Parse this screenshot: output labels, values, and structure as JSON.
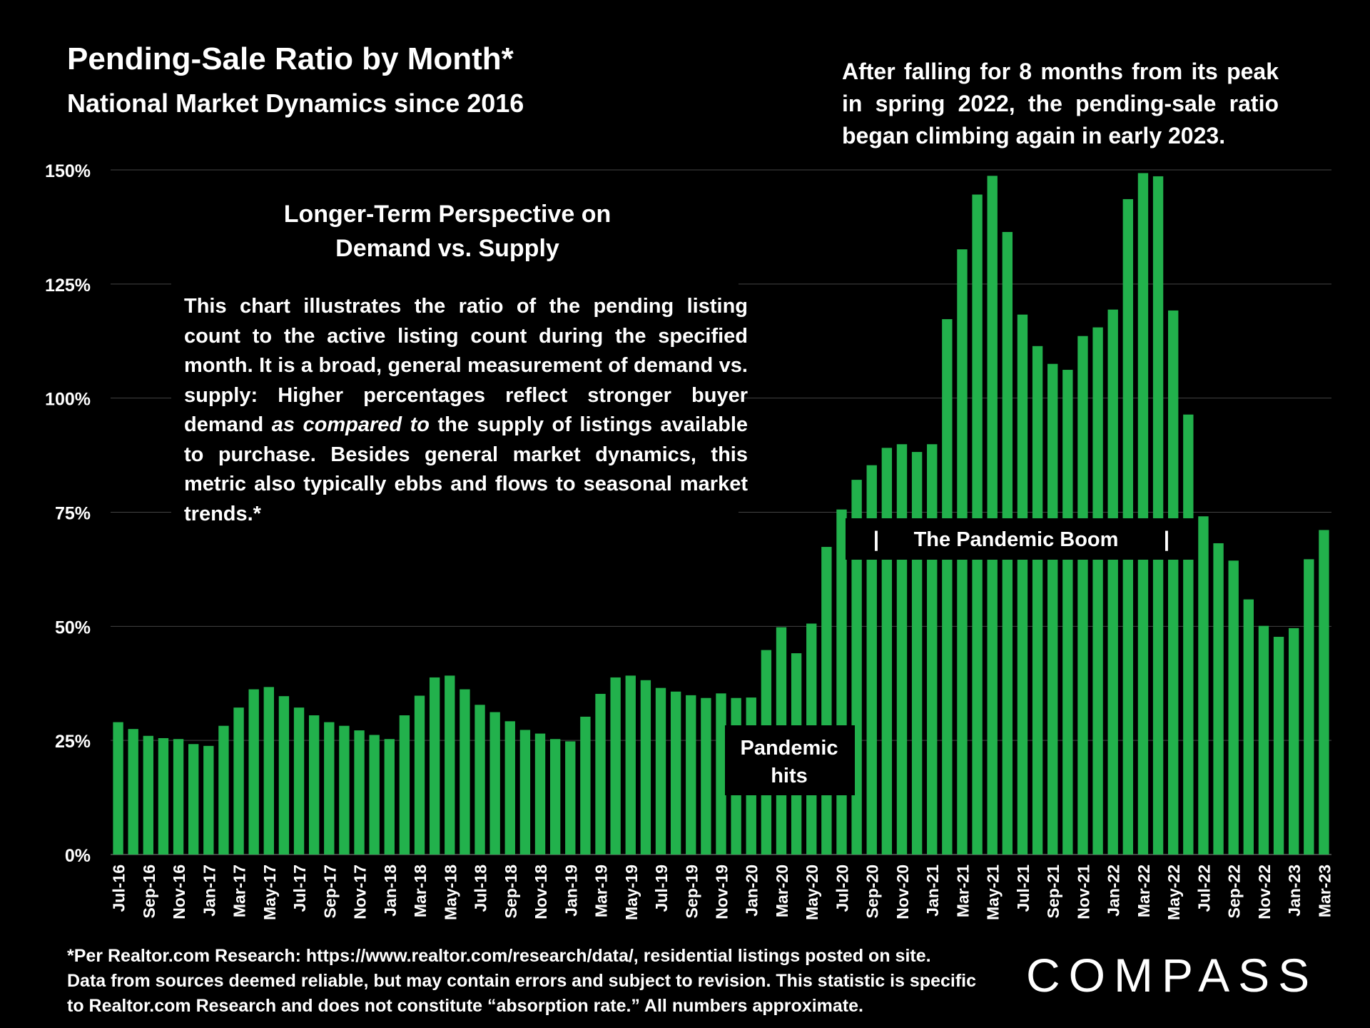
{
  "title": "Pending-Sale Ratio by Month*",
  "subtitle": "National Market Dynamics since 2016",
  "note": "After falling for 8 months from its peak in spring 2022, the pending-sale ratio began climbing again in early 2023.",
  "info_box": {
    "heading_line1": "Longer-Term Perspective on",
    "heading_line2": "Demand vs. Supply",
    "body_part1": "This chart illustrates the ratio of the pending listing count to the active listing count during the specified month. It is a broad, general measurement of demand vs. supply:  Higher percentages reflect stronger buyer demand ",
    "body_emph": "as compared to",
    "body_part2": " the supply of listings available to purchase. Besides general market dynamics, this metric also typically ebbs and flows to seasonal market trends.*"
  },
  "annotations": {
    "pandemic_hits": "Pandemic hits",
    "pandemic_boom": "The Pandemic Boom"
  },
  "footnote": "*Per Realtor.com Research:  https://www.realtor.com/research/data/, residential listings posted on site.\nData from sources deemed reliable, but may contain errors and subject to revision. This statistic is specific\nto Realtor.com Research and does not constitute “absorption rate.” All numbers approximate.",
  "logo": "COMPASS",
  "colors": {
    "bar": "#22b14c",
    "background": "#000000",
    "gridline": "#444444"
  },
  "chart_data": {
    "type": "bar",
    "ylim": [
      0,
      150
    ],
    "yticks": [
      0,
      25,
      50,
      75,
      100,
      125,
      150
    ],
    "ytick_labels": [
      "0%",
      "25%",
      "50%",
      "75%",
      "100%",
      "125%",
      "150%"
    ],
    "grid": true,
    "categories": [
      "Jul-16",
      "Aug-16",
      "Sep-16",
      "Oct-16",
      "Nov-16",
      "Dec-16",
      "Jan-17",
      "Feb-17",
      "Mar-17",
      "Apr-17",
      "May-17",
      "Jun-17",
      "Jul-17",
      "Aug-17",
      "Sep-17",
      "Oct-17",
      "Nov-17",
      "Dec-17",
      "Jan-18",
      "Feb-18",
      "Mar-18",
      "Apr-18",
      "May-18",
      "Jun-18",
      "Jul-18",
      "Aug-18",
      "Sep-18",
      "Oct-18",
      "Nov-18",
      "Dec-18",
      "Jan-19",
      "Feb-19",
      "Mar-19",
      "Apr-19",
      "May-19",
      "Jun-19",
      "Jul-19",
      "Aug-19",
      "Sep-19",
      "Oct-19",
      "Nov-19",
      "Dec-19",
      "Jan-20",
      "Feb-20",
      "Mar-20",
      "Apr-20",
      "May-20",
      "Jun-20",
      "Jul-20",
      "Aug-20",
      "Sep-20",
      "Oct-20",
      "Nov-20",
      "Dec-20",
      "Jan-21",
      "Feb-21",
      "Mar-21",
      "Apr-21",
      "May-21",
      "Jun-21",
      "Jul-21",
      "Aug-21",
      "Sep-21",
      "Oct-21",
      "Nov-21",
      "Dec-21",
      "Jan-22",
      "Feb-22",
      "Mar-22",
      "Apr-22",
      "May-22",
      "Jun-22",
      "Jul-22",
      "Aug-22",
      "Sep-22",
      "Oct-22",
      "Nov-22",
      "Dec-22",
      "Jan-23",
      "Feb-23",
      "Mar-23"
    ],
    "xtick_labels": [
      "Jul-16",
      "Sep-16",
      "Nov-16",
      "Jan-17",
      "Mar-17",
      "May-17",
      "Jul-17",
      "Sep-17",
      "Nov-17",
      "Jan-18",
      "Mar-18",
      "May-18",
      "Jul-18",
      "Sep-18",
      "Nov-18",
      "Jan-19",
      "Mar-19",
      "May-19",
      "Jul-19",
      "Sep-19",
      "Nov-19",
      "Jan-20",
      "Mar-20",
      "May-20",
      "Jul-20",
      "Sep-20",
      "Nov-20",
      "Jan-21",
      "Mar-21",
      "May-21",
      "Jul-21",
      "Sep-21",
      "Nov-21",
      "Jan-22",
      "Mar-22",
      "May-22",
      "Jul-22",
      "Sep-22",
      "Nov-22",
      "Jan-23",
      "Mar-23"
    ],
    "values": [
      29,
      27.5,
      26,
      25.5,
      25.3,
      24.2,
      23.8,
      28.2,
      32.2,
      36.2,
      36.7,
      34.7,
      32.2,
      30.5,
      29,
      28.2,
      27.2,
      26.2,
      25.3,
      30.5,
      34.8,
      38.8,
      39.2,
      36.2,
      32.8,
      31.2,
      29.2,
      27.3,
      26.5,
      25.3,
      24.8,
      30.2,
      35.2,
      38.8,
      39.2,
      38.2,
      36.5,
      35.7,
      34.9,
      34.3,
      35.3,
      34.3,
      34.4,
      44.8,
      49.8,
      44.1,
      50.6,
      67.4,
      75.6,
      82.1,
      85.3,
      89.1,
      89.9,
      88.2,
      89.9,
      117.3,
      132.6,
      144.6,
      148.7,
      136.4,
      118.3,
      111.4,
      107.5,
      106.2,
      113.6,
      115.5,
      119.4,
      143.6,
      149.3,
      148.6,
      119.2,
      96.4,
      74.1,
      68.2,
      64.4,
      55.9,
      50.1,
      47.7,
      49.6,
      64.7,
      71.1
    ]
  }
}
